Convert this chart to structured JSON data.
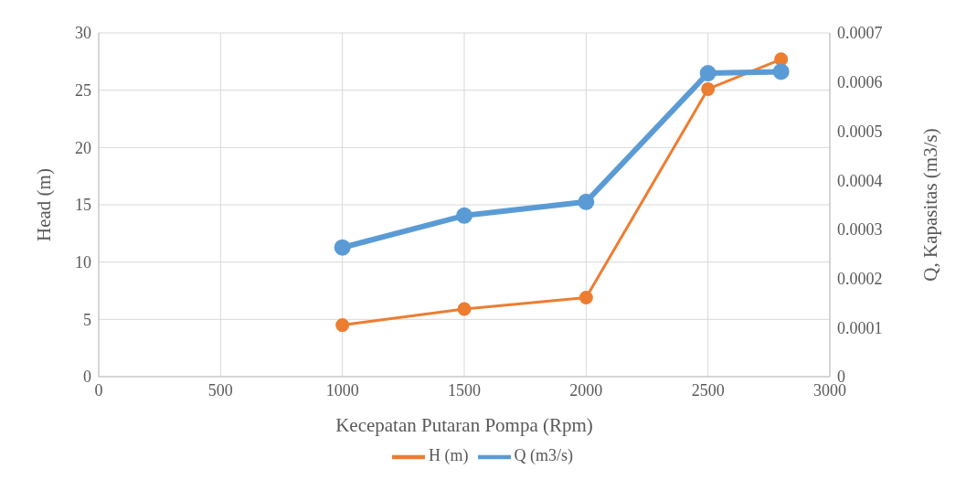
{
  "chart_data": {
    "type": "line",
    "xlabel": "Kecepatan Putaran Pompa (Rpm)",
    "ylabel": "Head (m)",
    "y2label": "Q, Kapasitas (m3/s)",
    "x": [
      1000,
      1500,
      2000,
      2500,
      2800
    ],
    "series": [
      {
        "name": "H (m)",
        "color": "#ed7d31",
        "values": [
          4.5,
          5.9,
          6.9,
          25.1,
          27.7
        ]
      },
      {
        "name": "Q (m3/s)",
        "color": "#5b9bd5",
        "axis": "y2",
        "values": [
          0.000263,
          0.000328,
          0.000356,
          0.000618,
          0.000621
        ]
      }
    ],
    "xlim": [
      0,
      3000
    ],
    "xticks": [
      0,
      500,
      1000,
      1500,
      2000,
      2500,
      3000
    ],
    "ylim": [
      0,
      30
    ],
    "yticks": [
      0,
      5,
      10,
      15,
      20,
      25,
      30
    ],
    "y2lim": [
      0,
      0.0007
    ],
    "y2ticks": [
      0,
      0.0001,
      0.0002,
      0.0003,
      0.0004,
      0.0005,
      0.0006,
      0.0007
    ],
    "grid": true,
    "legend": "bottom",
    "marker": "circle",
    "line_style": "solid"
  }
}
